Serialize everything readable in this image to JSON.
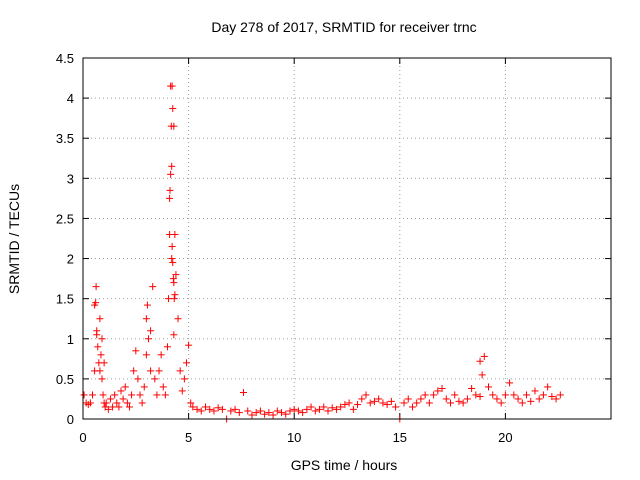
{
  "chart_data": {
    "type": "scatter",
    "title": "Day 278 of 2017, SRMTID for receiver trnc",
    "xlabel": "GPS time / hours",
    "ylabel": "SRMTID / TECUs",
    "xlim": [
      0,
      25
    ],
    "ylim": [
      0,
      4.5
    ],
    "xticks": [
      0,
      5,
      10,
      15,
      20
    ],
    "xtick_labels": [
      "0",
      "5",
      "10",
      "15",
      "20"
    ],
    "yticks": [
      0,
      0.5,
      1,
      1.5,
      2,
      2.5,
      3,
      3.5,
      4,
      4.5
    ],
    "ytick_labels": [
      "0",
      "0.5",
      "1",
      "1.5",
      "2",
      "2.5",
      "3",
      "3.5",
      "4",
      "4.5"
    ],
    "grid": true,
    "marker": "+",
    "color": "#ff0000",
    "series": [
      {
        "name": "SRMTID",
        "x": [
          0.05,
          0.15,
          0.25,
          0.35,
          0.45,
          0.55,
          0.6,
          0.62,
          0.65,
          0.7,
          0.75,
          0.8,
          0.85,
          0.9,
          0.95,
          1.0,
          1.05,
          1.1,
          1.2,
          1.3,
          1.4,
          1.5,
          1.6,
          1.7,
          1.8,
          1.9,
          2.0,
          2.1,
          2.2,
          2.3,
          2.4,
          2.5,
          2.6,
          2.7,
          2.8,
          2.9,
          3.0,
          3.05,
          3.1,
          3.2,
          3.3,
          3.4,
          3.5,
          3.6,
          3.7,
          3.8,
          3.9,
          4.0,
          4.05,
          4.1,
          4.15,
          4.2,
          4.22,
          4.25,
          4.3,
          4.35,
          4.4,
          4.5,
          4.6,
          4.7,
          4.8,
          4.9,
          5.0,
          5.1,
          5.2,
          5.4,
          5.6,
          5.8,
          6.0,
          6.2,
          6.4,
          6.6,
          6.8,
          7.0,
          7.2,
          7.4,
          7.6,
          7.8,
          8.0,
          8.2,
          8.4,
          8.6,
          8.8,
          9.0,
          9.2,
          9.4,
          9.6,
          9.8,
          10.0,
          10.2,
          10.4,
          10.6,
          10.8,
          11.0,
          11.2,
          11.4,
          11.6,
          11.8,
          12.0,
          12.2,
          12.4,
          12.6,
          12.8,
          13.0,
          13.2,
          13.4,
          13.6,
          13.8,
          14.0,
          14.2,
          14.4,
          14.6,
          14.8,
          15.0,
          15.2,
          15.4,
          15.6,
          15.8,
          16.0,
          16.2,
          16.4,
          16.6,
          16.8,
          17.0,
          17.2,
          17.4,
          17.6,
          17.8,
          18.0,
          18.2,
          18.4,
          18.6,
          18.8,
          19.0,
          19.2,
          19.4,
          19.6,
          19.8,
          20.0,
          20.2,
          20.4,
          20.6,
          20.8,
          21.0,
          21.2,
          21.4,
          21.6,
          21.8,
          22.0,
          22.2,
          22.4,
          22.6,
          0.55,
          0.65,
          0.8,
          0.9,
          1.0,
          3.0,
          3.2,
          4.15,
          4.18,
          4.2,
          4.22,
          4.25,
          4.28,
          4.3,
          4.32,
          4.35,
          4.1,
          4.12,
          4.3,
          18.8,
          18.9
        ],
        "y": [
          0.3,
          0.2,
          0.18,
          0.2,
          0.3,
          0.6,
          1.45,
          1.65,
          1.1,
          0.9,
          0.7,
          1.25,
          0.8,
          0.5,
          0.3,
          0.2,
          0.15,
          0.2,
          0.12,
          0.25,
          0.15,
          0.3,
          0.2,
          0.15,
          0.35,
          0.25,
          0.4,
          0.2,
          0.15,
          0.3,
          0.6,
          0.85,
          0.5,
          0.3,
          0.2,
          0.4,
          0.8,
          1.42,
          1.0,
          0.6,
          1.65,
          0.5,
          0.3,
          0.6,
          0.8,
          0.4,
          0.3,
          0.9,
          1.5,
          2.75,
          3.05,
          3.15,
          4.15,
          3.87,
          3.65,
          2.3,
          1.8,
          1.25,
          0.6,
          0.35,
          0.5,
          0.7,
          0.92,
          0.2,
          0.15,
          0.12,
          0.1,
          0.15,
          0.12,
          0.1,
          0.14,
          0.12,
          0.0,
          0.1,
          0.12,
          0.08,
          0.33,
          0.1,
          0.05,
          0.08,
          0.1,
          0.06,
          0.08,
          0.05,
          0.1,
          0.08,
          0.06,
          0.1,
          0.12,
          0.1,
          0.08,
          0.12,
          0.15,
          0.1,
          0.12,
          0.15,
          0.1,
          0.14,
          0.12,
          0.15,
          0.18,
          0.2,
          0.12,
          0.18,
          0.25,
          0.3,
          0.2,
          0.22,
          0.25,
          0.2,
          0.18,
          0.22,
          0.15,
          0.0,
          0.2,
          0.25,
          0.15,
          0.2,
          0.25,
          0.3,
          0.2,
          0.3,
          0.35,
          0.38,
          0.25,
          0.2,
          0.3,
          0.22,
          0.2,
          0.25,
          0.38,
          0.3,
          0.28,
          0.78,
          0.4,
          0.3,
          0.25,
          0.2,
          0.3,
          0.45,
          0.3,
          0.25,
          0.2,
          0.3,
          0.22,
          0.35,
          0.25,
          0.3,
          0.4,
          0.28,
          0.25,
          0.3,
          1.42,
          1.05,
          0.6,
          1.0,
          0.7,
          1.25,
          1.1,
          4.15,
          3.65,
          2.0,
          2.15,
          1.95,
          1.75,
          1.7,
          1.5,
          1.55,
          2.3,
          2.85,
          1.05,
          0.72,
          0.55
        ]
      }
    ]
  }
}
